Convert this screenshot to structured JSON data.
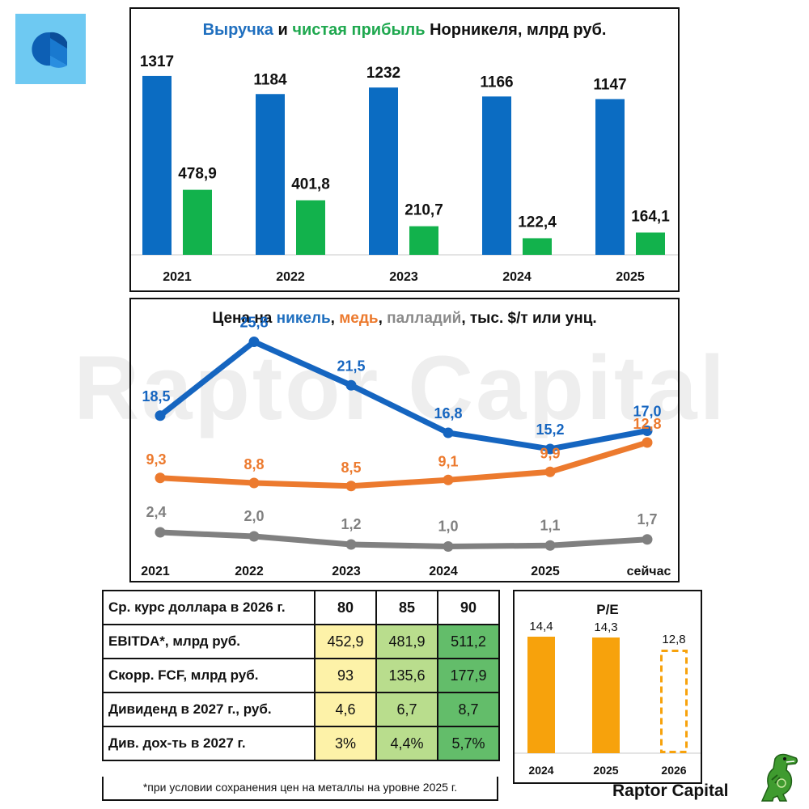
{
  "revenue_chart": {
    "title_parts": [
      {
        "text": "Выручка",
        "color": "#1f6fbf"
      },
      {
        "text": " и ",
        "color": "#111111"
      },
      {
        "text": "чистая прибыль",
        "color": "#1fa84f"
      },
      {
        "text": " Норникеля, млрд руб.",
        "color": "#111111"
      }
    ],
    "colors": {
      "revenue": "#0b6cc2",
      "profit": "#12b24c"
    }
  },
  "price_chart": {
    "title_parts": [
      {
        "text": "Цена на ",
        "color": "#111111"
      },
      {
        "text": "никель",
        "color": "#1f6fbf"
      },
      {
        "text": ", ",
        "color": "#111111"
      },
      {
        "text": "медь",
        "color": "#ec7a2e"
      },
      {
        "text": ", ",
        "color": "#111111"
      },
      {
        "text": "палладий",
        "color": "#8a8a8a"
      },
      {
        "text": ", тыс. $/т или унц.",
        "color": "#111111"
      }
    ],
    "colors": {
      "nickel": "#1565c0",
      "copper": "#ec7a2e",
      "palladium": "#808080"
    }
  },
  "scenario_table": {
    "header": {
      "label": "Ср. курс доллара в 2026 г.",
      "values": [
        "80",
        "85",
        "90"
      ]
    },
    "rows": [
      {
        "label": "EBITDA*, млрд руб.",
        "values": [
          "452,9",
          "481,9",
          "511,2"
        ]
      },
      {
        "label": "Скорр. FCF, млрд руб.",
        "values": [
          "93",
          "135,6",
          "177,9"
        ]
      },
      {
        "label": "Дивиденд в 2027 г., руб.",
        "values": [
          "4,6",
          "6,7",
          "8,7"
        ]
      },
      {
        "label": "Див. дох-ть в 2027 г.",
        "values": [
          "3%",
          "4,4%",
          "5,7%"
        ]
      }
    ],
    "footnote": "*при условии сохранения цен на металлы на уровне 2025 г.",
    "colors": [
      "#fdf2a8",
      "#b9dd8d",
      "#63bd6a"
    ]
  },
  "pe_colors": {
    "bar": "#f7a20c"
  },
  "watermark": "Raptor Capital",
  "brand": "Raptor Capital",
  "icons": {
    "logo": "nornickel-logo",
    "mascot": "dinosaur-mascot-icon"
  },
  "chart_data": [
    {
      "type": "bar",
      "title": "Выручка и чистая прибыль Норникеля, млрд руб.",
      "categories": [
        "2021",
        "2022",
        "2023",
        "2024",
        "2025"
      ],
      "series": [
        {
          "name": "Выручка",
          "values": [
            1317,
            1184,
            1232,
            1166,
            1147
          ],
          "labels": [
            "1317",
            "1184",
            "1232",
            "1166",
            "1147"
          ]
        },
        {
          "name": "чистая прибыль",
          "values": [
            478.9,
            401.8,
            210.7,
            122.4,
            164.1
          ],
          "labels": [
            "478,9",
            "401,8",
            "210,7",
            "122,4",
            "164,1"
          ]
        }
      ],
      "ylim": [
        0,
        1400
      ],
      "grid": false,
      "legend": "none"
    },
    {
      "type": "line",
      "title": "Цена на никель, медь, палладий, тыс. $/т или унц.",
      "categories": [
        "2021",
        "2022",
        "2023",
        "2024",
        "2025",
        "сейчас"
      ],
      "series": [
        {
          "name": "никель",
          "values": [
            18.5,
            25.8,
            21.5,
            16.8,
            15.2,
            17.0
          ],
          "labels": [
            "18,5",
            "25,8",
            "21,5",
            "16,8",
            "15,2",
            "17,0"
          ]
        },
        {
          "name": "медь",
          "values": [
            9.3,
            8.8,
            8.5,
            9.1,
            9.9,
            12.8
          ],
          "labels": [
            "9,3",
            "8,8",
            "8,5",
            "9,1",
            "9,9",
            "12,8"
          ]
        },
        {
          "name": "палладий",
          "values": [
            2.4,
            2.0,
            1.2,
            1.0,
            1.1,
            1.7
          ],
          "labels": [
            "2,4",
            "2,0",
            "1,2",
            "1,0",
            "1,1",
            "1,7"
          ]
        }
      ],
      "grid": false,
      "legend": "none"
    },
    {
      "type": "bar",
      "title": "P/E",
      "categories": [
        "2024",
        "2025",
        "2026"
      ],
      "values": [
        14.4,
        14.3,
        12.8
      ],
      "labels": [
        "14,4",
        "14,3",
        "12,8"
      ],
      "forecast": [
        false,
        false,
        true
      ],
      "ylim": [
        0,
        20
      ],
      "grid": false,
      "legend": "none"
    }
  ]
}
